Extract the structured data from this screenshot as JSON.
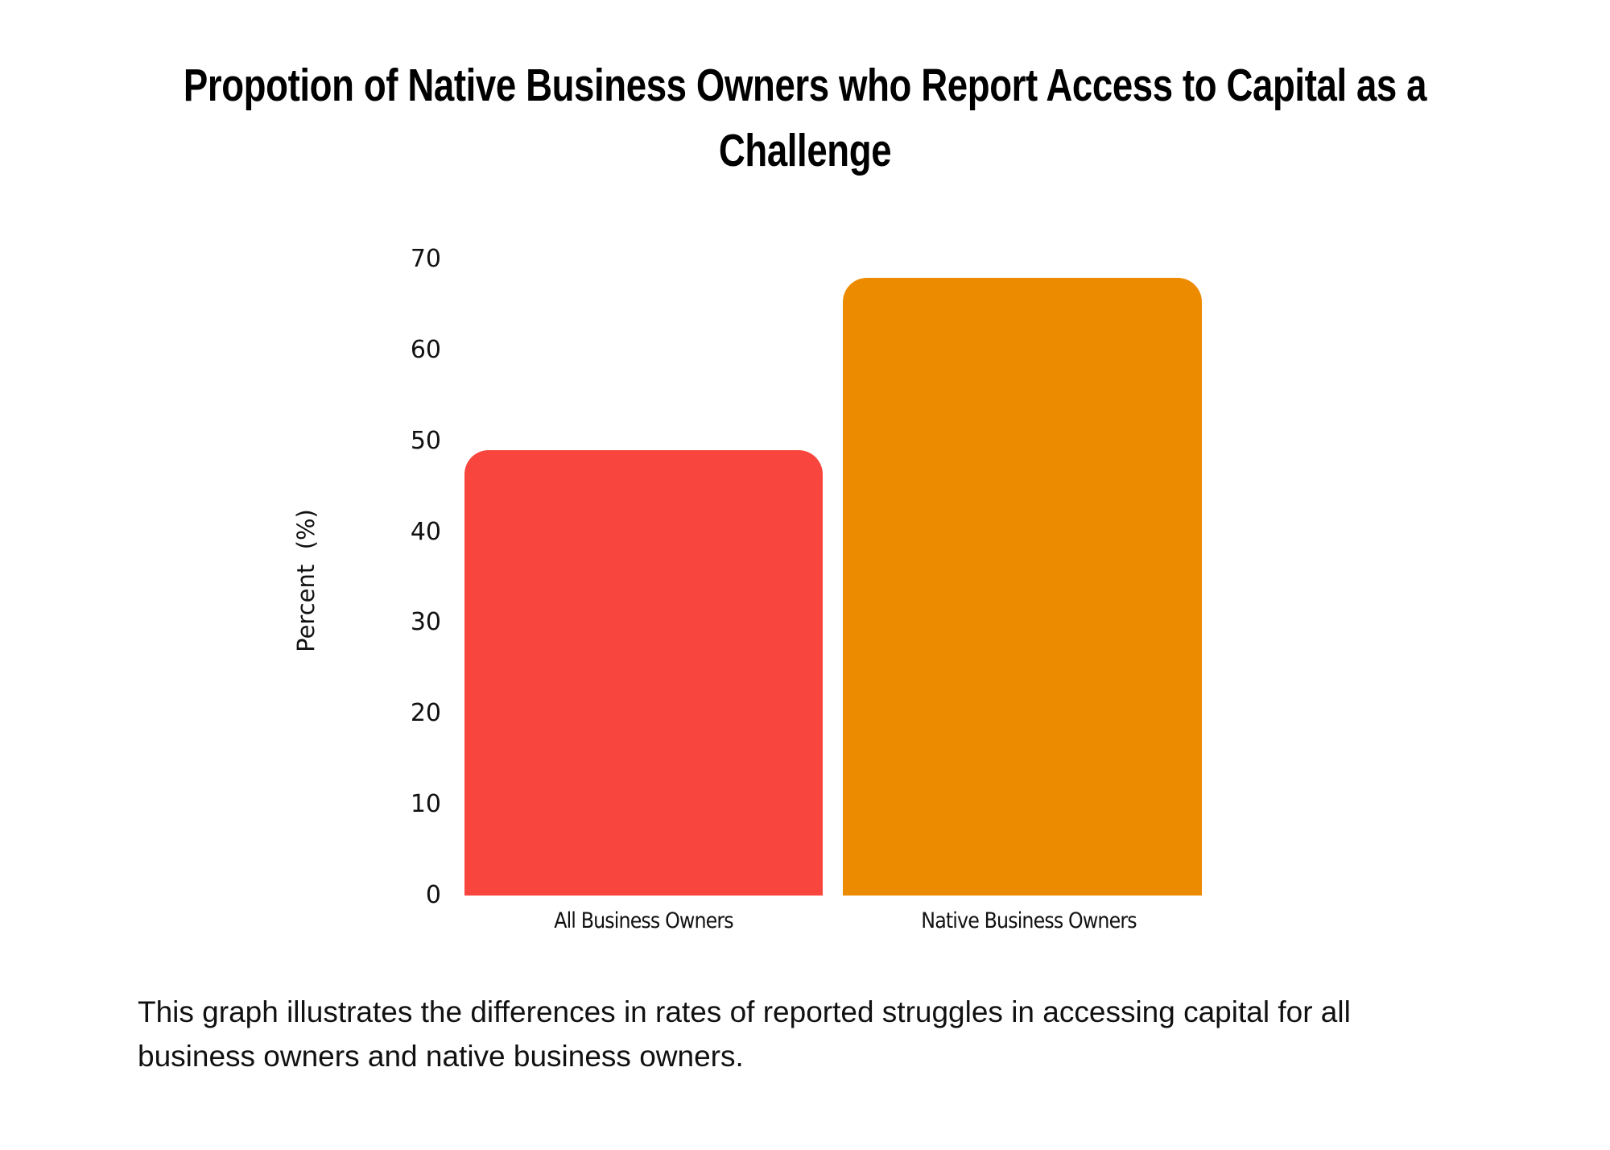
{
  "title": {
    "line1": "Propotion of Native Business Owners who Report Access to Capital as a",
    "line2": "Challenge"
  },
  "description": {
    "line1": "This graph illustrates the differences in rates of reported struggles in accessing capital for all",
    "line2": "business owners and native business owners."
  },
  "y_axis": {
    "title": "Percent  (%)",
    "ticks": [
      "0",
      "10",
      "20",
      "30",
      "40",
      "50",
      "60",
      "70"
    ]
  },
  "bars": [
    {
      "label": "All Business Owners",
      "value": 49,
      "color": "#F8453D"
    },
    {
      "label": "Native Business Owners",
      "value": 68,
      "color": "#EC8B00"
    }
  ],
  "chart_data": {
    "type": "bar",
    "title": "Propotion of Native Business Owners who Report Access to Capital as a Challenge",
    "categories": [
      "All Business Owners",
      "Native Business Owners"
    ],
    "values": [
      49,
      68
    ],
    "colors": [
      "#F8453D",
      "#EC8B00"
    ],
    "xlabel": "",
    "ylabel": "Percent  (%)",
    "ylim": [
      0,
      70
    ],
    "yticks": [
      0,
      10,
      20,
      30,
      40,
      50,
      60,
      70
    ],
    "grid": false,
    "legend": null,
    "caption": "This graph illustrates the differences in rates of reported struggles in accessing capital for all business owners and native business owners."
  }
}
